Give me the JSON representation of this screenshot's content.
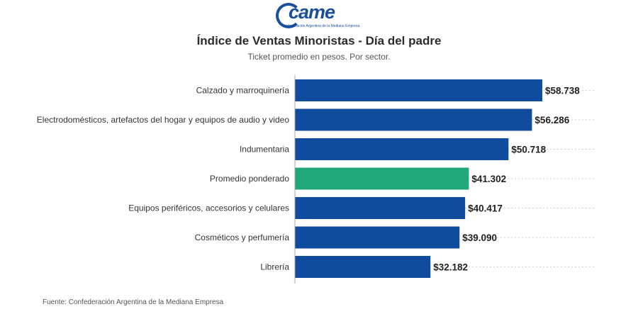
{
  "logo": {
    "word": "came",
    "tagline": "Confederación Argentina de la Mediana Empresa"
  },
  "chart_data": {
    "type": "bar",
    "orientation": "horizontal",
    "title": "Índice de Ventas Minoristas - Día del padre",
    "subtitle": "Ticket promedio en pesos. Por sector.",
    "categories": [
      "Calzado y marroquinería",
      "Electrodomésticos, artefactos del hogar y equipos de audio y video",
      "Indumentaria",
      "Promedio ponderado",
      "Equipos periféricos, accesorios y celulares",
      "Cosméticos y perfumería",
      "Librería"
    ],
    "values": [
      58738,
      56286,
      50718,
      41302,
      40417,
      39090,
      32182
    ],
    "value_labels": [
      "$58.738",
      "$56.286",
      "$50.718",
      "$41.302",
      "$40.417",
      "$39.090",
      "$32.182"
    ],
    "highlight_index": 3,
    "colors": {
      "bar": "#0f4c9e",
      "highlight": "#21a87a"
    },
    "xlim": [
      0,
      58738
    ]
  },
  "source": "Fuente: Confederación Argentina de la Mediana Empresa"
}
